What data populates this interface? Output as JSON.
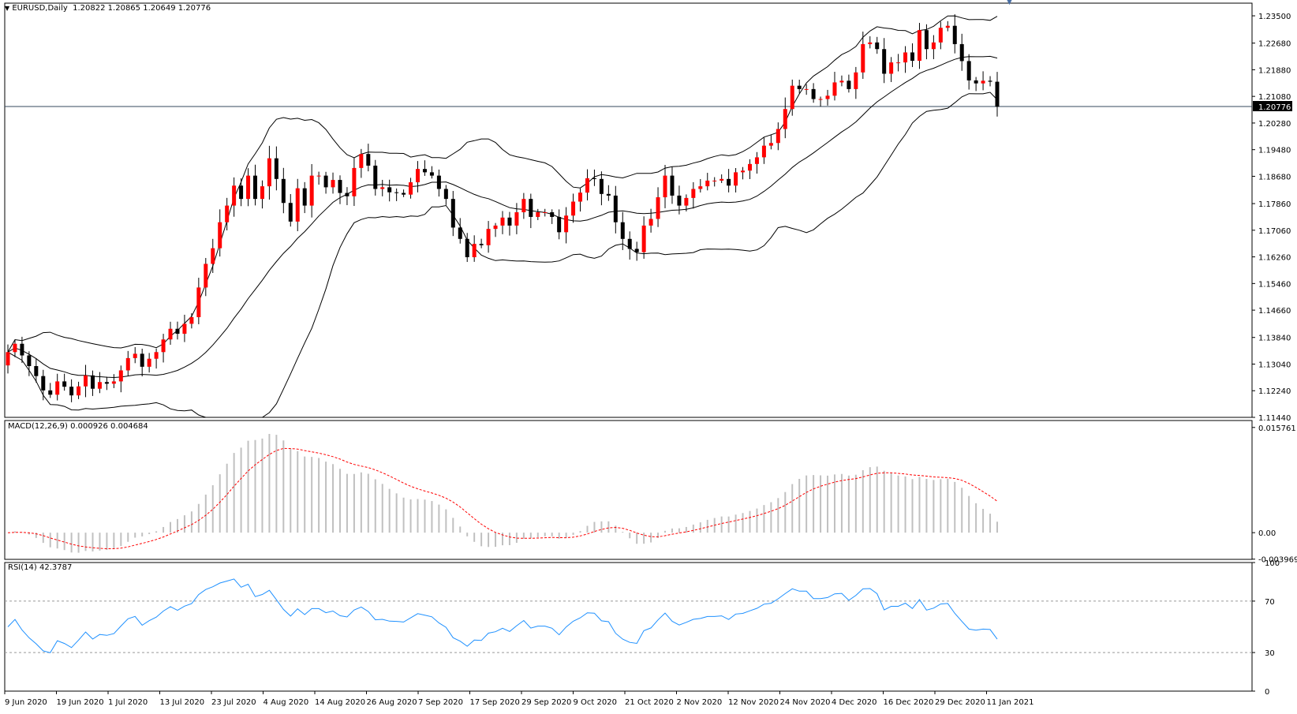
{
  "chart_header": {
    "symbol": "EURUSD,Daily",
    "ohlc": "1.20822 1.20865 1.20649 1.20776",
    "menu_icon": "triangle-down-icon",
    "scroll_marker_icon": "triangle-down-icon"
  },
  "colors": {
    "bull": "#ff0000",
    "bear": "#000000",
    "grid_line": "#34495e",
    "macd_hist": "#c0c0c0",
    "macd_signal": "#ff0000",
    "rsi_line": "#1e90ff"
  },
  "chart_data": [
    {
      "type": "candlestick",
      "name": "EURUSD,Daily",
      "ylim": [
        1.1144,
        1.2388
      ],
      "y_ticks": [
        "1.23500",
        "1.22680",
        "1.21880",
        "1.21080",
        "1.20280",
        "1.19480",
        "1.18680",
        "1.17860",
        "1.17060",
        "1.16260",
        "1.15460",
        "1.14660",
        "1.13840",
        "1.13040",
        "1.12240",
        "1.11440"
      ],
      "current_price": "1.20776",
      "x_labels": [
        "9 Jun 2020",
        "19 Jun 2020",
        "1 Jul 2020",
        "13 Jul 2020",
        "23 Jul 2020",
        "4 Aug 2020",
        "14 Aug 2020",
        "26 Aug 2020",
        "7 Sep 2020",
        "17 Sep 2020",
        "29 Sep 2020",
        "9 Oct 2020",
        "21 Oct 2020",
        "2 Nov 2020",
        "12 Nov 2020",
        "24 Nov 2020",
        "4 Dec 2020",
        "16 Dec 2020",
        "29 Dec 2020",
        "11 Jan 2021"
      ],
      "closes": [
        1.134,
        1.1365,
        1.133,
        1.1298,
        1.1268,
        1.1225,
        1.1212,
        1.1252,
        1.1236,
        1.121,
        1.1237,
        1.127,
        1.123,
        1.125,
        1.1245,
        1.1252,
        1.1285,
        1.1322,
        1.1335,
        1.1296,
        1.132,
        1.134,
        1.1378,
        1.141,
        1.1395,
        1.1425,
        1.1445,
        1.1534,
        1.1605,
        1.1652,
        1.173,
        1.178,
        1.184,
        1.18,
        1.187,
        1.18,
        1.1838,
        1.1922,
        1.186,
        1.1788,
        1.1732,
        1.1832,
        1.178,
        1.187,
        1.187,
        1.1835,
        1.1857,
        1.1818,
        1.1808,
        1.1893,
        1.1935,
        1.19,
        1.183,
        1.1835,
        1.182,
        1.1818,
        1.1813,
        1.185,
        1.189,
        1.188,
        1.187,
        1.183,
        1.18,
        1.1714,
        1.168,
        1.1625,
        1.1665,
        1.1661,
        1.171,
        1.172,
        1.1744,
        1.172,
        1.176,
        1.18,
        1.1746,
        1.176,
        1.176,
        1.1746,
        1.17,
        1.175,
        1.1792,
        1.1819,
        1.1862,
        1.186,
        1.1815,
        1.181,
        1.173,
        1.168,
        1.165,
        1.164,
        1.172,
        1.174,
        1.1805,
        1.187,
        1.181,
        1.178,
        1.1803,
        1.183,
        1.1838,
        1.1855,
        1.1855,
        1.186,
        1.184,
        1.188,
        1.1885,
        1.1905,
        1.1925,
        1.196,
        1.1968,
        1.201,
        1.207,
        1.214,
        1.213,
        1.213,
        1.21,
        1.21,
        1.211,
        1.215,
        1.2155,
        1.213,
        1.218,
        1.2265,
        1.227,
        1.225,
        1.2176,
        1.221,
        1.221,
        1.224,
        1.2215,
        1.2307,
        1.225,
        1.227,
        1.2314,
        1.232,
        1.2265,
        1.2214,
        1.2156,
        1.2147,
        1.2155,
        1.2152,
        1.2077
      ]
    },
    {
      "type": "bar",
      "name": "MACD(12,26,9)",
      "values_label": "0.000926 0.004684",
      "ylim": [
        -0.004,
        0.0168
      ],
      "y_ticks": [
        "0.015761",
        "0.00",
        "-0.003969"
      ]
    },
    {
      "type": "line",
      "name": "RSI(14)",
      "values_label": "42.3787",
      "ylim": [
        0,
        100
      ],
      "y_ticks": [
        "100",
        "70",
        "30",
        "0"
      ],
      "levels": [
        70,
        30
      ]
    }
  ]
}
